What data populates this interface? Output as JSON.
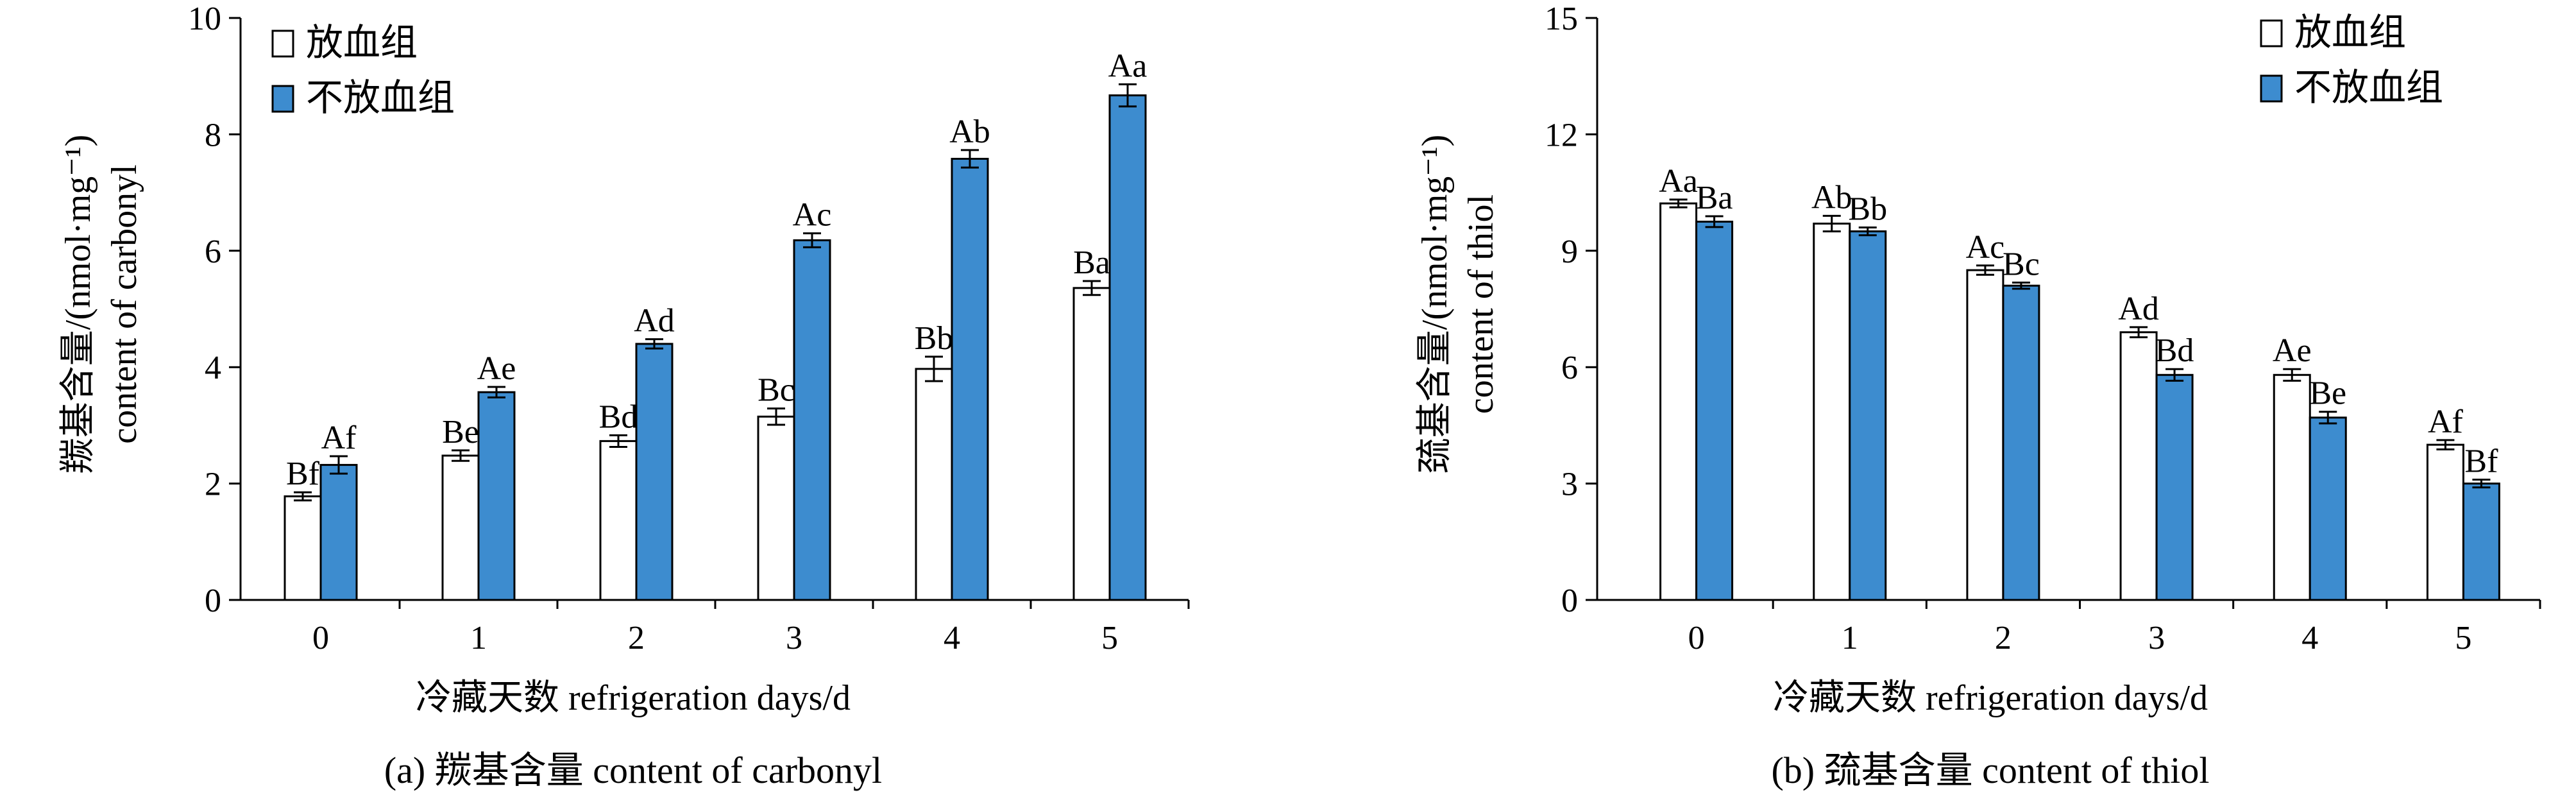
{
  "chart_data": [
    {
      "type": "bar",
      "caption": "(a) 羰基含量 content of carbonyl",
      "title": "",
      "xlabel": "冷藏天数 refrigeration days/d",
      "ylabel_line1": "羰基含量/(nmol·mg⁻¹)",
      "ylabel_line2": "content of carbonyl",
      "ylim": [
        0,
        10
      ],
      "yticks": [
        0,
        2,
        4,
        6,
        8,
        10
      ],
      "categories": [
        "0",
        "1",
        "2",
        "3",
        "4",
        "5"
      ],
      "legend_position": "top-left",
      "series": [
        {
          "name": "放血组",
          "color": "#ffffff",
          "values": [
            1.78,
            2.48,
            2.73,
            3.15,
            3.97,
            5.36
          ],
          "errors": [
            0.07,
            0.09,
            0.1,
            0.14,
            0.21,
            0.12
          ],
          "labels": [
            "Bf",
            "Be",
            "Bd",
            "Bc",
            "Bb",
            "Ba"
          ]
        },
        {
          "name": "不放血组",
          "color": "#3d8ccf",
          "values": [
            2.32,
            3.57,
            4.4,
            6.18,
            7.58,
            8.67
          ],
          "errors": [
            0.15,
            0.09,
            0.08,
            0.12,
            0.15,
            0.19
          ],
          "labels": [
            "Af",
            "Ae",
            "Ad",
            "Ac",
            "Ab",
            "Aa"
          ]
        }
      ]
    },
    {
      "type": "bar",
      "caption": "(b) 巯基含量 content of thiol",
      "title": "",
      "xlabel": "冷藏天数 refrigeration days/d",
      "ylabel_line1": "巯基含量/(nmol·mg⁻¹)",
      "ylabel_line2": "content of thiol",
      "ylim": [
        0,
        15
      ],
      "yticks": [
        0,
        3,
        6,
        9,
        12,
        15
      ],
      "categories": [
        "0",
        "1",
        "2",
        "3",
        "4",
        "5"
      ],
      "legend_position": "top-right",
      "series": [
        {
          "name": "放血组",
          "color": "#ffffff",
          "values": [
            10.22,
            9.7,
            8.5,
            6.9,
            5.8,
            4.0
          ],
          "errors": [
            0.1,
            0.2,
            0.12,
            0.13,
            0.15,
            0.12
          ],
          "labels": [
            "Aa",
            "Ab",
            "Ac",
            "Ad",
            "Ae",
            "Af"
          ]
        },
        {
          "name": "不放血组",
          "color": "#3d8ccf",
          "values": [
            9.75,
            9.5,
            8.1,
            5.8,
            4.7,
            3.0
          ],
          "errors": [
            0.14,
            0.1,
            0.08,
            0.15,
            0.15,
            0.1
          ],
          "labels": [
            "Ba",
            "Bb",
            "Bc",
            "Bd",
            "Be",
            "Bf"
          ]
        }
      ]
    }
  ]
}
